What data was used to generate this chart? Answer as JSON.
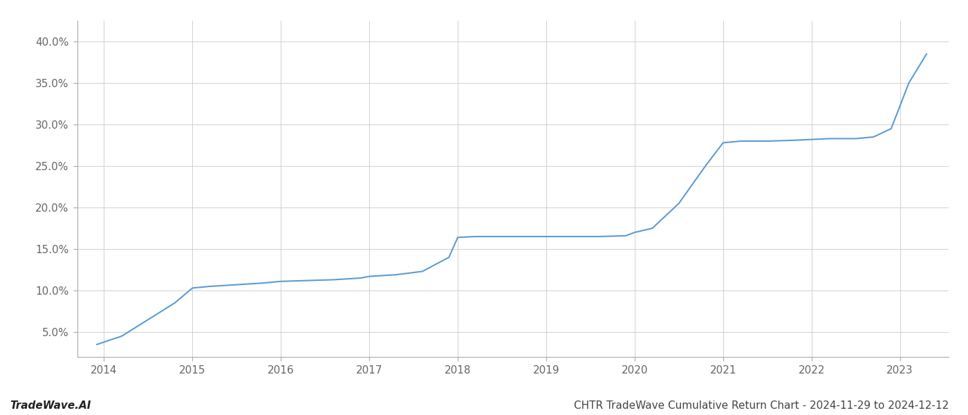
{
  "x_values": [
    2013.92,
    2014.2,
    2014.5,
    2014.8,
    2015.0,
    2015.2,
    2015.5,
    2015.8,
    2016.0,
    2016.3,
    2016.6,
    2016.9,
    2017.0,
    2017.3,
    2017.6,
    2017.9,
    2018.0,
    2018.2,
    2018.5,
    2018.8,
    2019.0,
    2019.3,
    2019.6,
    2019.9,
    2020.0,
    2020.2,
    2020.5,
    2020.8,
    2021.0,
    2021.2,
    2021.5,
    2021.8,
    2022.0,
    2022.2,
    2022.5,
    2022.7,
    2022.9,
    2023.1,
    2023.3
  ],
  "y_values": [
    3.5,
    4.5,
    6.5,
    8.5,
    10.3,
    10.5,
    10.7,
    10.9,
    11.1,
    11.2,
    11.3,
    11.5,
    11.7,
    11.9,
    12.3,
    14.0,
    16.4,
    16.5,
    16.5,
    16.5,
    16.5,
    16.5,
    16.5,
    16.6,
    17.0,
    17.5,
    20.5,
    25.0,
    27.8,
    28.0,
    28.0,
    28.1,
    28.2,
    28.3,
    28.3,
    28.5,
    29.5,
    35.0,
    38.5
  ],
  "line_color": "#5b9bd5",
  "line_width": 1.5,
  "title": "CHTR TradeWave Cumulative Return Chart - 2024-11-29 to 2024-12-12",
  "watermark": "TradeWave.AI",
  "xlim": [
    2013.7,
    2023.55
  ],
  "ylim": [
    2.0,
    42.5
  ],
  "ytick_values": [
    5.0,
    10.0,
    15.0,
    20.0,
    25.0,
    30.0,
    35.0,
    40.0
  ],
  "xtick_values": [
    2014,
    2015,
    2016,
    2017,
    2018,
    2019,
    2020,
    2021,
    2022,
    2023
  ],
  "grid_color": "#d0d0d0",
  "background_color": "#ffffff",
  "title_fontsize": 11,
  "watermark_fontsize": 11,
  "tick_fontsize": 11
}
